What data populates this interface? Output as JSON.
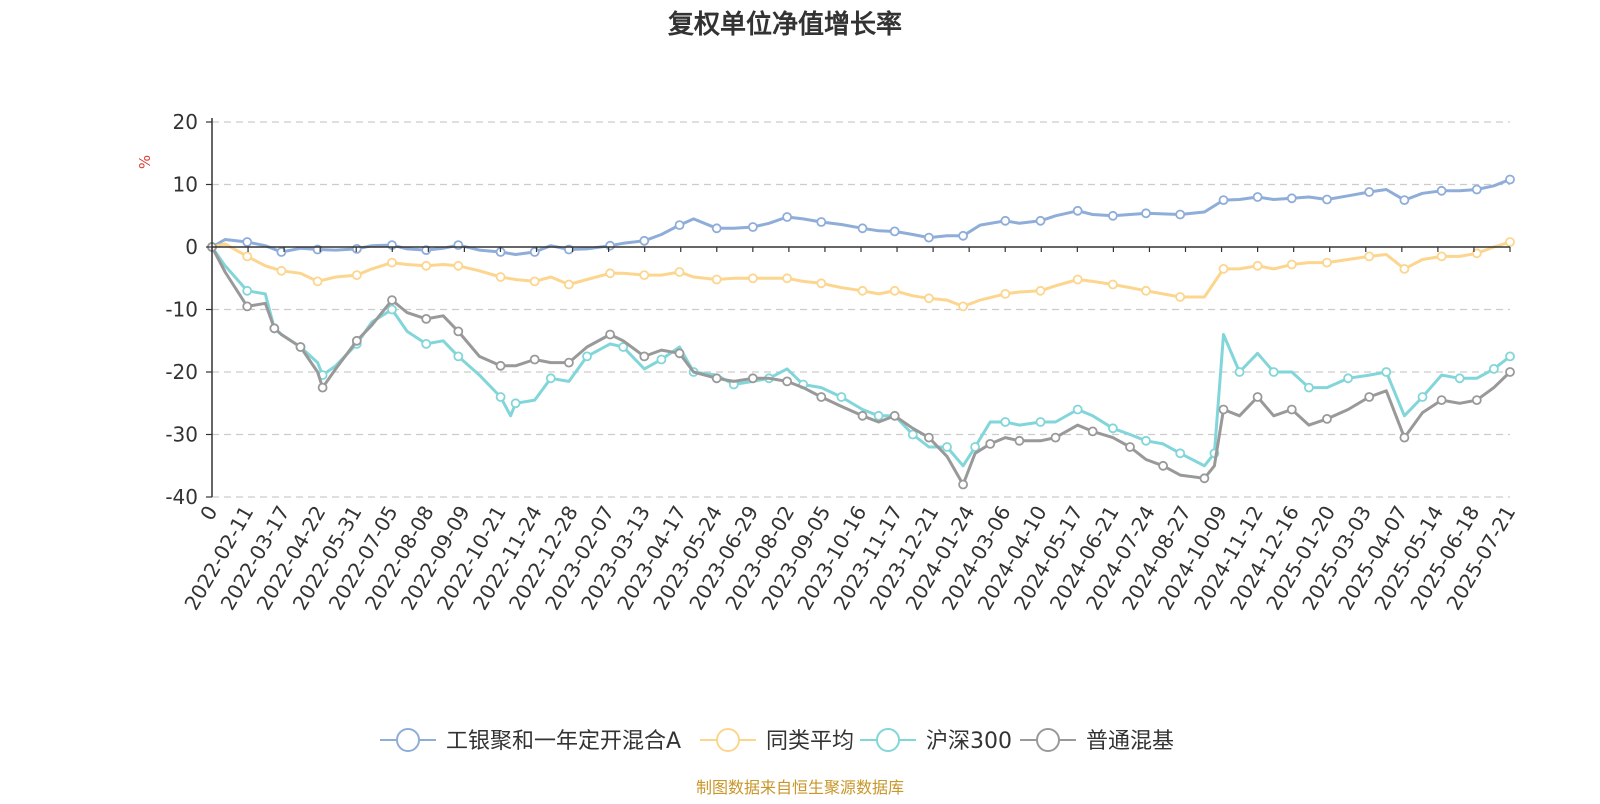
{
  "chart_data": {
    "type": "line",
    "title": "复权单位净值增长率",
    "ylabel": "%",
    "ylim": [
      -40,
      20
    ],
    "yticks": [
      -40,
      -30,
      -20,
      -10,
      0,
      10,
      20
    ],
    "grid": true,
    "legend_position": "bottom",
    "x_range": [
      "2022-01-07",
      "2025-07-21"
    ],
    "x_start_label": "0",
    "x_tick_labels": [
      "2022-02-11",
      "2022-03-17",
      "2022-04-22",
      "2022-05-31",
      "2022-07-05",
      "2022-08-08",
      "2022-09-09",
      "2022-10-21",
      "2022-11-24",
      "2022-12-28",
      "2023-02-07",
      "2023-03-13",
      "2023-04-17",
      "2023-05-24",
      "2023-06-29",
      "2023-08-02",
      "2023-09-05",
      "2023-10-16",
      "2023-11-17",
      "2023-12-21",
      "2024-01-24",
      "2024-03-06",
      "2024-04-10",
      "2024-05-17",
      "2024-06-21",
      "2024-07-24",
      "2024-08-27",
      "2024-10-09",
      "2024-11-12",
      "2024-12-16",
      "2025-01-20",
      "2025-03-03",
      "2025-04-07",
      "2025-05-14",
      "2025-06-18",
      "2025-07-21"
    ],
    "series": [
      {
        "name": "工银聚和一年定开混合A",
        "color": "#8fadd9",
        "x": [
          "2022-01-07",
          "2022-01-20",
          "2022-02-11",
          "2022-03-01",
          "2022-03-17",
          "2022-04-05",
          "2022-04-22",
          "2022-05-10",
          "2022-05-31",
          "2022-06-15",
          "2022-07-05",
          "2022-07-20",
          "2022-08-08",
          "2022-08-25",
          "2022-09-09",
          "2022-09-30",
          "2022-10-21",
          "2022-11-05",
          "2022-11-24",
          "2022-12-10",
          "2022-12-28",
          "2023-01-15",
          "2023-02-07",
          "2023-02-20",
          "2023-03-13",
          "2023-03-30",
          "2023-04-17",
          "2023-05-01",
          "2023-05-24",
          "2023-06-10",
          "2023-06-29",
          "2023-07-15",
          "2023-08-02",
          "2023-08-18",
          "2023-09-05",
          "2023-09-25",
          "2023-10-16",
          "2023-11-01",
          "2023-11-17",
          "2023-12-05",
          "2023-12-21",
          "2024-01-08",
          "2024-01-24",
          "2024-02-10",
          "2024-03-06",
          "2024-03-20",
          "2024-04-10",
          "2024-04-25",
          "2024-05-17",
          "2024-06-01",
          "2024-06-21",
          "2024-07-08",
          "2024-07-24",
          "2024-08-10",
          "2024-08-27",
          "2024-09-20",
          "2024-10-09",
          "2024-10-25",
          "2024-11-12",
          "2024-11-28",
          "2024-12-16",
          "2025-01-02",
          "2025-01-20",
          "2025-02-10",
          "2025-03-03",
          "2025-03-20",
          "2025-04-07",
          "2025-04-25",
          "2025-05-14",
          "2025-06-01",
          "2025-06-18",
          "2025-07-05",
          "2025-07-21"
        ],
        "values": [
          0,
          1.2,
          0.8,
          0.2,
          -0.8,
          -0.2,
          -0.4,
          -0.5,
          -0.3,
          0.2,
          0.3,
          -0.3,
          -0.5,
          -0.2,
          0.3,
          -0.5,
          -0.8,
          -1.2,
          -0.8,
          0.2,
          -0.4,
          -0.3,
          0.2,
          0.6,
          1.0,
          2.0,
          3.5,
          4.5,
          3.0,
          3.0,
          3.2,
          3.8,
          4.8,
          4.5,
          4.0,
          3.6,
          3.0,
          2.6,
          2.5,
          2.0,
          1.5,
          1.8,
          1.8,
          3.5,
          4.2,
          3.8,
          4.2,
          5.0,
          5.8,
          5.2,
          5.0,
          5.2,
          5.4,
          5.3,
          5.2,
          5.6,
          7.5,
          7.6,
          8.0,
          7.6,
          7.8,
          8.0,
          7.6,
          8.2,
          8.8,
          9.2,
          7.5,
          8.6,
          9.0,
          9.0,
          9.2,
          9.8,
          10.8
        ]
      },
      {
        "name": "同类平均",
        "color": "#fcd68e",
        "x": [
          "2022-01-07",
          "2022-01-20",
          "2022-02-11",
          "2022-03-01",
          "2022-03-17",
          "2022-04-05",
          "2022-04-22",
          "2022-05-10",
          "2022-05-31",
          "2022-06-15",
          "2022-07-05",
          "2022-07-20",
          "2022-08-08",
          "2022-08-25",
          "2022-09-09",
          "2022-09-30",
          "2022-10-21",
          "2022-11-05",
          "2022-11-24",
          "2022-12-10",
          "2022-12-28",
          "2023-01-15",
          "2023-02-07",
          "2023-02-20",
          "2023-03-13",
          "2023-03-30",
          "2023-04-17",
          "2023-05-01",
          "2023-05-24",
          "2023-06-10",
          "2023-06-29",
          "2023-07-15",
          "2023-08-02",
          "2023-08-18",
          "2023-09-05",
          "2023-09-25",
          "2023-10-16",
          "2023-11-01",
          "2023-11-17",
          "2023-12-05",
          "2023-12-21",
          "2024-01-08",
          "2024-01-24",
          "2024-02-10",
          "2024-03-06",
          "2024-03-20",
          "2024-04-10",
          "2024-04-25",
          "2024-05-17",
          "2024-06-01",
          "2024-06-21",
          "2024-07-08",
          "2024-07-24",
          "2024-08-10",
          "2024-08-27",
          "2024-09-20",
          "2024-10-09",
          "2024-10-25",
          "2024-11-12",
          "2024-11-28",
          "2024-12-16",
          "2025-01-02",
          "2025-01-20",
          "2025-02-10",
          "2025-03-03",
          "2025-03-20",
          "2025-04-07",
          "2025-04-25",
          "2025-05-14",
          "2025-06-01",
          "2025-06-18",
          "2025-07-05",
          "2025-07-21"
        ],
        "values": [
          0,
          0.5,
          -1.5,
          -3.0,
          -3.8,
          -4.2,
          -5.5,
          -4.8,
          -4.5,
          -3.5,
          -2.5,
          -2.8,
          -3.0,
          -2.8,
          -3.0,
          -3.8,
          -4.8,
          -5.2,
          -5.5,
          -4.8,
          -6.0,
          -5.2,
          -4.2,
          -4.2,
          -4.5,
          -4.5,
          -4.0,
          -4.8,
          -5.2,
          -5.0,
          -5.0,
          -5.0,
          -5.0,
          -5.5,
          -5.8,
          -6.5,
          -7.0,
          -7.5,
          -7.0,
          -7.8,
          -8.2,
          -8.5,
          -9.5,
          -8.5,
          -7.5,
          -7.2,
          -7.0,
          -6.2,
          -5.2,
          -5.5,
          -6.0,
          -6.5,
          -7.0,
          -7.5,
          -8.0,
          -8.0,
          -3.5,
          -3.5,
          -3.0,
          -3.5,
          -2.8,
          -2.5,
          -2.5,
          -2.0,
          -1.5,
          -1.2,
          -3.5,
          -2.0,
          -1.5,
          -1.5,
          -1.0,
          0.0,
          0.8
        ]
      },
      {
        "name": "沪深300",
        "color": "#82d6da",
        "x": [
          "2022-01-07",
          "2022-01-20",
          "2022-02-11",
          "2022-03-01",
          "2022-03-10",
          "2022-03-17",
          "2022-04-05",
          "2022-04-22",
          "2022-04-27",
          "2022-05-10",
          "2022-05-31",
          "2022-06-15",
          "2022-07-05",
          "2022-07-20",
          "2022-08-08",
          "2022-08-25",
          "2022-09-09",
          "2022-09-30",
          "2022-10-21",
          "2022-10-31",
          "2022-11-05",
          "2022-11-24",
          "2022-12-10",
          "2022-12-28",
          "2023-01-15",
          "2023-02-07",
          "2023-02-20",
          "2023-03-13",
          "2023-03-30",
          "2023-04-17",
          "2023-05-01",
          "2023-05-24",
          "2023-06-10",
          "2023-06-29",
          "2023-07-15",
          "2023-08-02",
          "2023-08-18",
          "2023-09-05",
          "2023-09-25",
          "2023-10-16",
          "2023-11-01",
          "2023-11-17",
          "2023-12-05",
          "2023-12-21",
          "2024-01-08",
          "2024-01-24",
          "2024-02-05",
          "2024-02-20",
          "2024-03-06",
          "2024-03-20",
          "2024-04-10",
          "2024-04-25",
          "2024-05-17",
          "2024-06-01",
          "2024-06-21",
          "2024-07-08",
          "2024-07-24",
          "2024-08-10",
          "2024-08-27",
          "2024-09-20",
          "2024-09-30",
          "2024-10-09",
          "2024-10-25",
          "2024-11-12",
          "2024-11-28",
          "2024-12-16",
          "2025-01-02",
          "2025-01-20",
          "2025-02-10",
          "2025-03-03",
          "2025-03-20",
          "2025-04-07",
          "2025-04-25",
          "2025-05-14",
          "2025-06-01",
          "2025-06-18",
          "2025-07-05",
          "2025-07-21"
        ],
        "values": [
          0,
          -3.0,
          -7.0,
          -7.5,
          -13.0,
          -14.0,
          -16.0,
          -18.5,
          -20.5,
          -19.0,
          -15.5,
          -12.0,
          -10.0,
          -13.5,
          -15.5,
          -15.0,
          -17.5,
          -20.5,
          -24.0,
          -27.0,
          -25.0,
          -24.5,
          -21.0,
          -21.5,
          -17.5,
          -15.5,
          -16.0,
          -19.5,
          -18.0,
          -16.0,
          -20.0,
          -20.5,
          -22.0,
          -21.5,
          -21.0,
          -19.5,
          -22.0,
          -22.5,
          -24.0,
          -26.0,
          -27.0,
          -27.0,
          -30.0,
          -32.0,
          -32.0,
          -35.0,
          -32.0,
          -28.0,
          -28.0,
          -28.5,
          -28.0,
          -28.0,
          -26.0,
          -27.0,
          -29.0,
          -30.0,
          -31.0,
          -31.5,
          -33.0,
          -35.0,
          -33.0,
          -14.0,
          -20.0,
          -17.0,
          -20.0,
          -20.0,
          -22.5,
          -22.5,
          -21.0,
          -20.5,
          -20.0,
          -27.0,
          -24.0,
          -20.5,
          -21.0,
          -21.0,
          -19.5,
          -17.5
        ]
      },
      {
        "name": "普通混基",
        "color": "#999999",
        "x": [
          "2022-01-07",
          "2022-01-20",
          "2022-02-11",
          "2022-03-01",
          "2022-03-10",
          "2022-03-17",
          "2022-04-05",
          "2022-04-22",
          "2022-04-27",
          "2022-05-10",
          "2022-05-31",
          "2022-06-15",
          "2022-07-05",
          "2022-07-20",
          "2022-08-08",
          "2022-08-25",
          "2022-09-09",
          "2022-09-30",
          "2022-10-21",
          "2022-11-05",
          "2022-11-24",
          "2022-12-10",
          "2022-12-28",
          "2023-01-15",
          "2023-02-07",
          "2023-02-20",
          "2023-03-13",
          "2023-03-30",
          "2023-04-17",
          "2023-05-01",
          "2023-05-24",
          "2023-06-10",
          "2023-06-29",
          "2023-07-15",
          "2023-08-02",
          "2023-08-18",
          "2023-09-05",
          "2023-09-25",
          "2023-10-16",
          "2023-11-01",
          "2023-11-17",
          "2023-12-05",
          "2023-12-21",
          "2024-01-08",
          "2024-01-24",
          "2024-02-05",
          "2024-02-20",
          "2024-03-06",
          "2024-03-20",
          "2024-04-10",
          "2024-04-25",
          "2024-05-17",
          "2024-06-01",
          "2024-06-21",
          "2024-07-08",
          "2024-07-24",
          "2024-08-10",
          "2024-08-27",
          "2024-09-20",
          "2024-09-30",
          "2024-10-09",
          "2024-10-25",
          "2024-11-12",
          "2024-11-28",
          "2024-12-16",
          "2025-01-02",
          "2025-01-20",
          "2025-02-10",
          "2025-03-03",
          "2025-03-20",
          "2025-04-07",
          "2025-04-25",
          "2025-05-14",
          "2025-06-01",
          "2025-06-18",
          "2025-07-05",
          "2025-07-21"
        ],
        "values": [
          0,
          -4.0,
          -9.5,
          -9.0,
          -13.0,
          -14.0,
          -16.0,
          -20.0,
          -22.5,
          -19.5,
          -15.0,
          -12.5,
          -8.5,
          -10.5,
          -11.5,
          -11.0,
          -13.5,
          -17.5,
          -19.0,
          -19.0,
          -18.0,
          -18.5,
          -18.5,
          -16.0,
          -14.0,
          -15.0,
          -17.5,
          -16.5,
          -17.0,
          -20.0,
          -21.0,
          -21.5,
          -21.0,
          -21.0,
          -21.5,
          -22.5,
          -24.0,
          -25.5,
          -27.0,
          -28.0,
          -27.0,
          -29.0,
          -30.5,
          -33.5,
          -38.0,
          -33.0,
          -31.5,
          -30.5,
          -31.0,
          -31.0,
          -30.5,
          -28.5,
          -29.5,
          -30.5,
          -32.0,
          -34.0,
          -35.0,
          -36.5,
          -37.0,
          -35.0,
          -26.0,
          -27.0,
          -24.0,
          -27.0,
          -26.0,
          -28.5,
          -27.5,
          -26.0,
          -24.0,
          -23.0,
          -30.5,
          -26.5,
          -24.5,
          -25.0,
          -24.5,
          -22.5,
          -20.0
        ]
      }
    ],
    "source_note": "制图数据来自恒生聚源数据库"
  }
}
